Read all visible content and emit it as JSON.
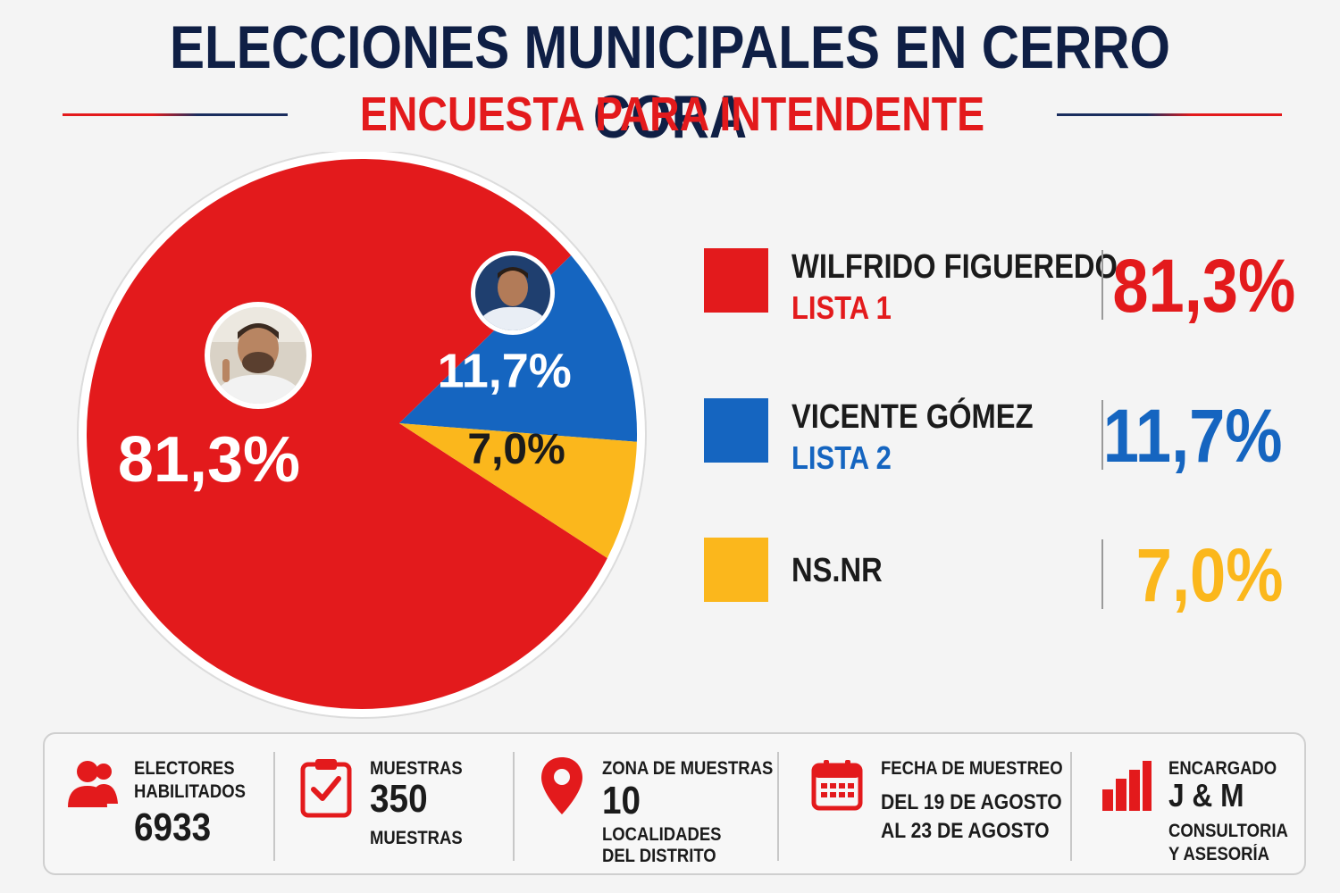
{
  "header": {
    "title": "ELECCIONES MUNICIPALES EN CERRO CORA",
    "subtitle": "ENCUESTA PARA INTENDENTE"
  },
  "colors": {
    "red": "#e31a1c",
    "blue": "#1565c0",
    "yellow": "#fbb71c",
    "navy": "#0f1f45"
  },
  "chart_data": {
    "type": "pie",
    "categories": [
      "WILFRIDO FIGUEREDO",
      "VICENTE GÓMEZ",
      "NS.NR"
    ],
    "values": [
      81.3,
      11.7,
      7.0
    ],
    "value_labels": [
      "81,3%",
      "11,7%",
      "7,0%"
    ],
    "colors": [
      "#e31a1c",
      "#1565c0",
      "#fbb71c"
    ],
    "title": "ENCUESTA PARA INTENDENTE",
    "legend": "right"
  },
  "legend": [
    {
      "name": "WILFRIDO FIGUEREDO",
      "list": "LISTA 1",
      "value": "81,3%",
      "color": "#e31a1c"
    },
    {
      "name": "VICENTE GÓMEZ",
      "list": "LISTA 2",
      "value": "11,7%",
      "color": "#1565c0"
    },
    {
      "name": "NS.NR",
      "list": "",
      "value": "7,0%",
      "color": "#fbb71c"
    }
  ],
  "info": {
    "electores": {
      "label1": "ELECTORES",
      "label2": "HABILITADOS",
      "value": "6933",
      "icon": "people-icon"
    },
    "muestras": {
      "label": "MUESTRAS",
      "value": "350",
      "sublabel": "MUESTRAS",
      "icon": "clipboard-check-icon"
    },
    "zona": {
      "label": "ZONA DE MUESTRAS",
      "value": "10",
      "sub1": "LOCALIDADES",
      "sub2": "DEL DISTRITO",
      "icon": "map-pin-icon"
    },
    "fecha": {
      "label": "FECHA DE MUESTREO",
      "line1": "DEL 19 DE AGOSTO",
      "line2": "AL 23 DE AGOSTO",
      "icon": "calendar-icon"
    },
    "encargado": {
      "label": "ENCARGADO",
      "value": "J & M",
      "sub1": "CONSULTORIA",
      "sub2": "Y ASESORÍA",
      "icon": "bar-chart-icon"
    }
  }
}
